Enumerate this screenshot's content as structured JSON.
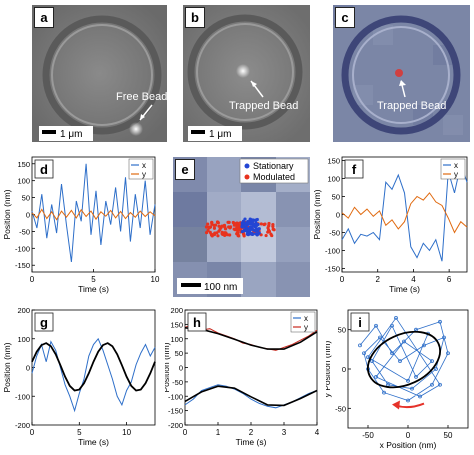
{
  "figure": {
    "panels": {
      "a": {
        "label": "a",
        "annotation": "Free Bead",
        "scalebar": "1 μm"
      },
      "b": {
        "label": "b",
        "annotation": "Trapped Bead",
        "scalebar": "1 μm"
      },
      "c": {
        "label": "c",
        "annotation": "Trapped Bead"
      },
      "e": {
        "label": "e",
        "scalebar": "100 nm"
      }
    },
    "colors": {
      "x": "#2e6fc9",
      "y": "#e06a10",
      "stationary": "#2346d4",
      "modulated": "#e8321e",
      "fit": "#000000",
      "arrow": "#e5322a"
    }
  },
  "chart_data": [
    {
      "panel": "d",
      "type": "line",
      "xlabel": "Time (s)",
      "ylabel": "Position (nm)",
      "xlim": [
        0,
        10
      ],
      "ylim": [
        -170,
        170
      ],
      "xticks": [
        "0",
        "5",
        "10"
      ],
      "yticks": [
        "-150",
        "-100",
        "-50",
        "0",
        "50",
        "100",
        "150"
      ],
      "legend": "top-right",
      "series": [
        {
          "name": "x",
          "x": [
            0,
            0.4,
            0.8,
            1.2,
            1.6,
            2,
            2.4,
            2.8,
            3.2,
            3.6,
            4,
            4.4,
            4.8,
            5.2,
            5.6,
            6,
            6.4,
            6.8,
            7.2,
            7.6,
            8,
            8.4,
            8.8,
            9.2,
            9.6,
            10
          ],
          "values": [
            10,
            -40,
            60,
            -70,
            30,
            -55,
            90,
            -30,
            -140,
            40,
            -20,
            150,
            -60,
            70,
            -90,
            40,
            -30,
            80,
            -50,
            110,
            -80,
            60,
            -40,
            100,
            -60,
            30
          ]
        },
        {
          "name": "y",
          "x": [
            0,
            0.4,
            0.8,
            1.2,
            1.6,
            2,
            2.4,
            2.8,
            3.2,
            3.6,
            4,
            4.4,
            4.8,
            5.2,
            5.6,
            6,
            6.4,
            6.8,
            7.2,
            7.6,
            8,
            8.4,
            8.8,
            9.2,
            9.6,
            10
          ],
          "values": [
            5,
            -10,
            15,
            -12,
            8,
            -15,
            10,
            -8,
            12,
            -10,
            14,
            -6,
            10,
            -14,
            8,
            -5,
            12,
            -10,
            9,
            -12,
            6,
            -8,
            10,
            -6,
            8,
            -4
          ]
        }
      ]
    },
    {
      "panel": "e",
      "type": "scatter",
      "legend": "top-right",
      "series": [
        {
          "name": "Stationary",
          "note": "tight cluster near center"
        },
        {
          "name": "Modulated",
          "note": "horizontal spread around center"
        }
      ]
    },
    {
      "panel": "f",
      "type": "line",
      "xlabel": "Time (s)",
      "ylabel": "Position (nm)",
      "xlim": [
        0,
        7
      ],
      "ylim": [
        -160,
        160
      ],
      "xticks": [
        "0",
        "2",
        "4",
        "6"
      ],
      "yticks": [
        "-150",
        "-100",
        "-50",
        "0",
        "50",
        "100",
        "150"
      ],
      "legend": "top-right",
      "series": [
        {
          "name": "x",
          "x": [
            0,
            0.35,
            0.7,
            1.05,
            1.4,
            1.75,
            2.1,
            2.45,
            2.8,
            3.15,
            3.5,
            3.85,
            4.2,
            4.55,
            4.9,
            5.25,
            5.6,
            5.95,
            6.3,
            6.65,
            7
          ],
          "values": [
            -70,
            -40,
            -80,
            -55,
            -60,
            -50,
            -70,
            90,
            70,
            110,
            60,
            -90,
            -120,
            -80,
            -100,
            -70,
            -130,
            120,
            60,
            140,
            90
          ]
        },
        {
          "name": "y",
          "x": [
            0,
            0.35,
            0.7,
            1.05,
            1.4,
            1.75,
            2.1,
            2.45,
            2.8,
            3.15,
            3.5,
            3.85,
            4.2,
            4.55,
            4.9,
            5.25,
            5.6,
            5.95,
            6.3,
            6.65,
            7
          ],
          "values": [
            5,
            -10,
            20,
            0,
            15,
            -5,
            10,
            -30,
            -15,
            -40,
            -20,
            30,
            50,
            40,
            60,
            35,
            25,
            -10,
            -50,
            -20,
            -35
          ]
        }
      ]
    },
    {
      "panel": "g",
      "type": "line",
      "xlabel": "Time (s)",
      "ylabel": "Position (nm)",
      "xlim": [
        0,
        13
      ],
      "ylim": [
        -200,
        200
      ],
      "xticks": [
        "0",
        "5",
        "10"
      ],
      "yticks": [
        "-200",
        "-100",
        "0",
        "100",
        "200"
      ],
      "series": [
        {
          "name": "",
          "x": [
            0,
            0.5,
            1,
            1.5,
            2,
            2.5,
            3,
            3.5,
            4,
            4.5,
            5,
            5.5,
            6,
            6.5,
            7,
            7.5,
            8,
            8.5,
            9,
            9.5,
            10,
            10.5,
            11,
            11.5,
            12,
            12.5,
            13
          ],
          "values": [
            -20,
            40,
            80,
            20,
            90,
            60,
            0,
            -60,
            -100,
            -150,
            -90,
            -40,
            40,
            80,
            100,
            60,
            10,
            -40,
            -100,
            -130,
            -80,
            -50,
            10,
            50,
            80,
            40,
            70
          ]
        },
        {
          "name": "",
          "x": [
            0,
            0.5,
            1,
            1.5,
            2,
            2.5,
            3,
            3.5,
            4,
            4.5,
            5,
            5.5,
            6,
            6.5,
            7,
            7.5,
            8,
            8.5,
            9,
            9.5,
            10,
            10.5,
            11,
            11.5,
            12,
            12.5,
            13
          ],
          "values": [
            20,
            55,
            78,
            85,
            74,
            46,
            8,
            -32,
            -64,
            -80,
            -77,
            -55,
            -20,
            20,
            55,
            78,
            85,
            74,
            46,
            8,
            -32,
            -64,
            -80,
            -77,
            -55,
            -20,
            20
          ]
        }
      ]
    },
    {
      "panel": "h",
      "type": "line",
      "xlabel": "Time (s)",
      "ylabel": "Position (nm)",
      "xlim": [
        0,
        4
      ],
      "ylim": [
        -200,
        200
      ],
      "xticks": [
        "0",
        "1",
        "2",
        "3",
        "4"
      ],
      "yticks": [
        "-200",
        "-150",
        "-100",
        "-50",
        "0",
        "50",
        "100",
        "150",
        "200"
      ],
      "legend": "top-right",
      "series": [
        {
          "name": "x",
          "x": [
            0,
            0.25,
            0.5,
            0.75,
            1,
            1.25,
            1.5,
            1.75,
            2,
            2.25,
            2.5,
            2.75,
            3,
            3.25,
            3.5,
            3.75,
            4
          ],
          "values": [
            -130,
            -110,
            -80,
            -70,
            -60,
            -65,
            -75,
            -90,
            -110,
            -125,
            -135,
            -140,
            -130,
            -120,
            -105,
            -90,
            -80
          ]
        },
        {
          "name": "y",
          "x": [
            0,
            0.25,
            0.5,
            0.75,
            1,
            1.25,
            1.5,
            1.75,
            2,
            2.25,
            2.5,
            2.75,
            3,
            3.25,
            3.5,
            3.75,
            4
          ],
          "values": [
            140,
            150,
            130,
            135,
            120,
            110,
            100,
            85,
            80,
            70,
            65,
            60,
            70,
            80,
            95,
            110,
            130
          ]
        },
        {
          "name": "",
          "x": [
            0,
            0.5,
            1,
            1.5,
            2,
            2.5,
            3,
            3.5,
            4
          ],
          "values": [
            -118,
            -85,
            -65,
            -72,
            -102,
            -130,
            -132,
            -108,
            -80
          ]
        },
        {
          "name": "",
          "x": [
            0,
            0.5,
            1,
            1.5,
            2,
            2.5,
            3,
            3.5,
            4
          ],
          "values": [
            138,
            133,
            118,
            98,
            78,
            64,
            64,
            88,
            124
          ]
        }
      ]
    },
    {
      "panel": "i",
      "type": "scatter",
      "xlabel": "x Position (nm)",
      "ylabel": "y Position (nm)",
      "xlim": [
        -75,
        75
      ],
      "ylim": [
        -75,
        75
      ],
      "xticks": [
        "-50",
        "0",
        "50"
      ],
      "yticks": [
        "-50",
        "0",
        "50"
      ],
      "series": [
        {
          "name": "",
          "x": [
            -60,
            -40,
            -20,
            10,
            40,
            50,
            30,
            0,
            -30,
            -50,
            -55,
            -35,
            -10,
            20,
            45,
            35,
            5,
            -25,
            -45,
            -20,
            10,
            30,
            -5,
            -40,
            15,
            40,
            -15,
            -50,
            0,
            25
          ],
          "y": [
            30,
            55,
            20,
            50,
            60,
            20,
            -20,
            -40,
            -30,
            0,
            20,
            40,
            10,
            30,
            40,
            0,
            -25,
            -20,
            10,
            55,
            -10,
            10,
            35,
            -10,
            -35,
            -20,
            65,
            15,
            -15,
            45
          ]
        }
      ]
    }
  ]
}
